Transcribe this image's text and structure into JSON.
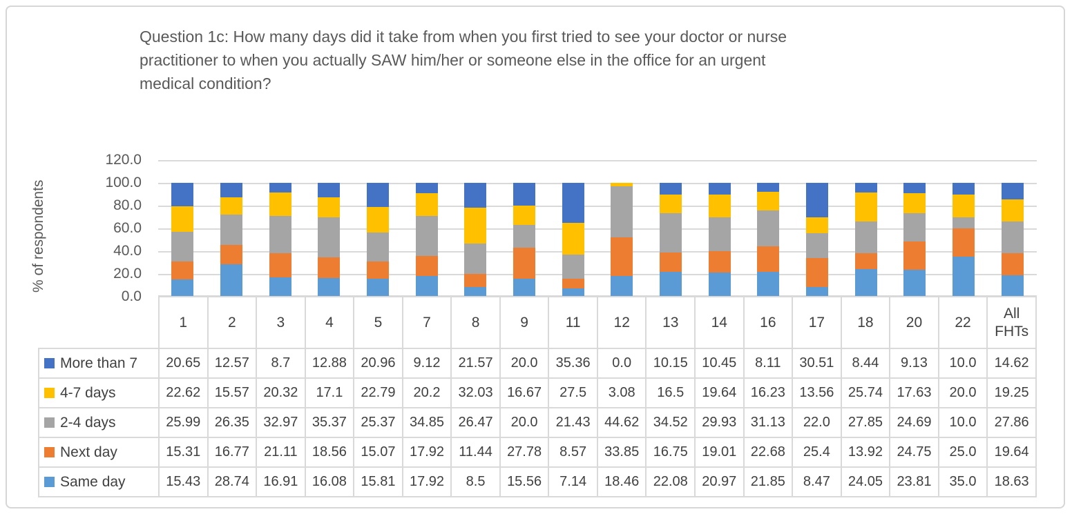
{
  "title": "Question 1c: How many days did it take from when you first tried to see your doctor or nurse practitioner to when you actually SAW him/her or someone else in the office for an urgent medical condition?",
  "title_lines": [
    "Question 1c: How many days did it take from when you first tried to see your doctor or nurse",
    "practitioner to when you actually SAW him/her or someone else in the office for an urgent",
    "medical condition?"
  ],
  "y_axis": {
    "label": "% of respondents",
    "ticks": [
      "120.0",
      "100.0",
      "80.0",
      "60.0",
      "40.0",
      "20.0",
      "0.0"
    ],
    "min": 0,
    "max": 120,
    "step": 20
  },
  "colors": {
    "same_day": "#5B9BD5",
    "next_day": "#ED7D31",
    "days_2_4": "#A5A5A5",
    "days_4_7": "#FFC000",
    "more_than_7": "#4472C4",
    "gridline": "#D9D9D9",
    "text": "#595959"
  },
  "chart_data": {
    "type": "bar",
    "stacked": true,
    "title": "Question 1c: How many days did it take from when you first tried to see your doctor or nurse practitioner to when you actually SAW him/her or someone else in the office for an urgent medical condition?",
    "xlabel": "",
    "ylabel": "% of respondents",
    "ylim": [
      0,
      120
    ],
    "grid": true,
    "legend_position": "table-left",
    "categories": [
      "1",
      "2",
      "3",
      "4",
      "5",
      "7",
      "8",
      "9",
      "11",
      "12",
      "13",
      "14",
      "16",
      "17",
      "18",
      "20",
      "22",
      "All FHTs"
    ],
    "series": [
      {
        "name": "Same day",
        "color": "#5B9BD5",
        "values": [
          "15.43",
          "28.74",
          "16.91",
          "16.08",
          "15.81",
          "17.92",
          "8.5",
          "15.56",
          "7.14",
          "18.46",
          "22.08",
          "20.97",
          "21.85",
          "8.47",
          "24.05",
          "23.81",
          "35.0",
          "18.63"
        ]
      },
      {
        "name": "Next day",
        "color": "#ED7D31",
        "values": [
          "15.31",
          "16.77",
          "21.11",
          "18.56",
          "15.07",
          "17.92",
          "11.44",
          "27.78",
          "8.57",
          "33.85",
          "16.75",
          "19.01",
          "22.68",
          "25.4",
          "13.92",
          "24.75",
          "25.0",
          "19.64"
        ]
      },
      {
        "name": "2-4 days",
        "color": "#A5A5A5",
        "values": [
          "25.99",
          "26.35",
          "32.97",
          "35.37",
          "25.37",
          "34.85",
          "26.47",
          "20.0",
          "21.43",
          "44.62",
          "34.52",
          "29.93",
          "31.13",
          "22.0",
          "27.85",
          "24.69",
          "10.0",
          "27.86"
        ]
      },
      {
        "name": "4-7 days",
        "color": "#FFC000",
        "values": [
          "22.62",
          "15.57",
          "20.32",
          "17.1",
          "22.79",
          "20.2",
          "32.03",
          "16.67",
          "27.5",
          "3.08",
          "16.5",
          "19.64",
          "16.23",
          "13.56",
          "25.74",
          "17.63",
          "20.0",
          "19.25"
        ]
      },
      {
        "name": "More than 7",
        "color": "#4472C4",
        "values": [
          "20.65",
          "12.57",
          "8.7",
          "12.88",
          "20.96",
          "9.12",
          "21.57",
          "20.0",
          "35.36",
          "0.0",
          "10.15",
          "10.45",
          "8.11",
          "30.51",
          "8.44",
          "9.13",
          "10.0",
          "14.62"
        ]
      }
    ],
    "table_row_order_top_to_bottom": [
      "More than 7",
      "4-7 days",
      "2-4 days",
      "Next day",
      "Same day"
    ]
  }
}
